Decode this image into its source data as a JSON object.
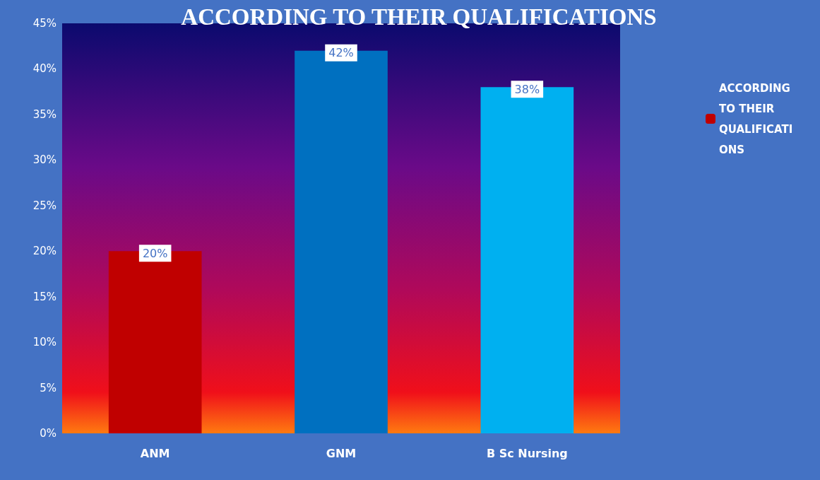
{
  "chart_data": {
    "type": "bar",
    "title": "ACCORDING TO THEIR QUALIFICATIONS",
    "categories": [
      "ANM",
      "GNM",
      "B Sc Nursing"
    ],
    "series": [
      {
        "name": "ACCORDING TO THEIR QUALIFICATIONS",
        "colors": [
          "#c00000",
          "#0070c0",
          "#00b0f0"
        ],
        "values": [
          20,
          42,
          38
        ],
        "value_labels": [
          "20%",
          "42%",
          "38%"
        ]
      }
    ],
    "ylim": [
      0,
      45
    ],
    "yticks": [
      {
        "value": 0,
        "label": "0%"
      },
      {
        "value": 5,
        "label": "5%"
      },
      {
        "value": 10,
        "label": "10%"
      },
      {
        "value": 15,
        "label": "15%"
      },
      {
        "value": 20,
        "label": "20%"
      },
      {
        "value": 25,
        "label": "25%"
      },
      {
        "value": 30,
        "label": "30%"
      },
      {
        "value": 35,
        "label": "35%"
      },
      {
        "value": 40,
        "label": "40%"
      },
      {
        "value": 45,
        "label": "45%"
      }
    ],
    "grid": false,
    "legend": "right"
  }
}
